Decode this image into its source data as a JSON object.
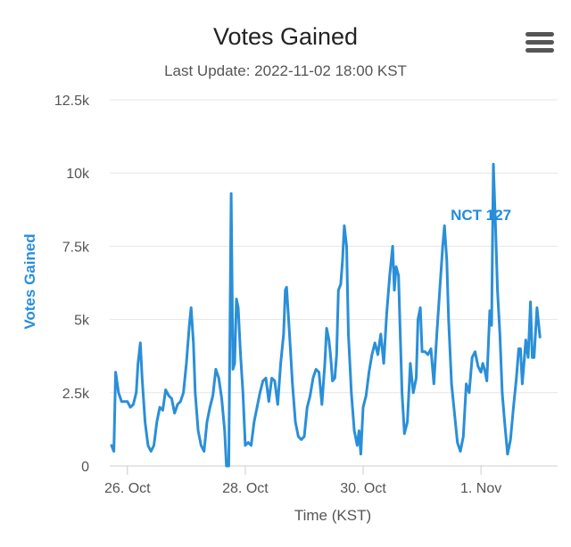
{
  "chart_data": {
    "type": "line",
    "title": "Votes Gained",
    "subtitle": "Last Update: 2022-11-02 18:00 KST",
    "xlabel": "Time (KST)",
    "ylabel": "Votes Gained",
    "ylim": [
      0,
      12500
    ],
    "yticks": [
      {
        "value": 0,
        "label": "0"
      },
      {
        "value": 2500,
        "label": "2.5k"
      },
      {
        "value": 5000,
        "label": "5k"
      },
      {
        "value": 7500,
        "label": "7.5k"
      },
      {
        "value": 10000,
        "label": "10k"
      },
      {
        "value": 12500,
        "label": "12.5k"
      }
    ],
    "xlim": [
      25.7,
      33.3
    ],
    "xticks": [
      {
        "value": 26,
        "label": "26. Oct"
      },
      {
        "value": 28,
        "label": "28. Oct"
      },
      {
        "value": 30,
        "label": "30. Oct"
      },
      {
        "value": 32,
        "label": "1. Nov"
      }
    ],
    "grid": true,
    "color": "#2a8fd8",
    "series": [
      {
        "name": "NCT 127",
        "points": [
          [
            25.73,
            700
          ],
          [
            25.77,
            500
          ],
          [
            25.8,
            3200
          ],
          [
            25.85,
            2500
          ],
          [
            25.9,
            2200
          ],
          [
            25.95,
            2200
          ],
          [
            26.0,
            2200
          ],
          [
            26.05,
            2000
          ],
          [
            26.1,
            2100
          ],
          [
            26.15,
            2500
          ],
          [
            26.18,
            3500
          ],
          [
            26.22,
            4200
          ],
          [
            26.25,
            3000
          ],
          [
            26.3,
            1500
          ],
          [
            26.35,
            700
          ],
          [
            26.4,
            500
          ],
          [
            26.45,
            700
          ],
          [
            26.5,
            1500
          ],
          [
            26.55,
            2000
          ],
          [
            26.6,
            1900
          ],
          [
            26.65,
            2600
          ],
          [
            26.7,
            2400
          ],
          [
            26.75,
            2300
          ],
          [
            26.8,
            1800
          ],
          [
            26.85,
            2100
          ],
          [
            26.9,
            2200
          ],
          [
            26.95,
            2500
          ],
          [
            27.0,
            3500
          ],
          [
            27.05,
            4800
          ],
          [
            27.08,
            5400
          ],
          [
            27.12,
            4200
          ],
          [
            27.15,
            2500
          ],
          [
            27.2,
            1200
          ],
          [
            27.25,
            700
          ],
          [
            27.3,
            500
          ],
          [
            27.35,
            1500
          ],
          [
            27.4,
            2000
          ],
          [
            27.45,
            2400
          ],
          [
            27.5,
            3300
          ],
          [
            27.55,
            3000
          ],
          [
            27.6,
            2300
          ],
          [
            27.65,
            1200
          ],
          [
            27.68,
            0
          ],
          [
            27.72,
            0
          ],
          [
            27.76,
            9300
          ],
          [
            27.79,
            3300
          ],
          [
            27.82,
            3500
          ],
          [
            27.85,
            5700
          ],
          [
            27.88,
            5400
          ],
          [
            27.92,
            3800
          ],
          [
            27.96,
            2500
          ],
          [
            28.0,
            700
          ],
          [
            28.05,
            800
          ],
          [
            28.1,
            700
          ],
          [
            28.15,
            1500
          ],
          [
            28.2,
            2000
          ],
          [
            28.25,
            2500
          ],
          [
            28.3,
            2900
          ],
          [
            28.35,
            3000
          ],
          [
            28.4,
            2200
          ],
          [
            28.45,
            3000
          ],
          [
            28.5,
            2900
          ],
          [
            28.55,
            2100
          ],
          [
            28.6,
            3500
          ],
          [
            28.65,
            4500
          ],
          [
            28.68,
            6000
          ],
          [
            28.7,
            6100
          ],
          [
            28.75,
            4500
          ],
          [
            28.8,
            2800
          ],
          [
            28.85,
            1500
          ],
          [
            28.9,
            1000
          ],
          [
            28.95,
            900
          ],
          [
            29.0,
            1000
          ],
          [
            29.05,
            2000
          ],
          [
            29.1,
            2400
          ],
          [
            29.15,
            3000
          ],
          [
            29.2,
            3300
          ],
          [
            29.25,
            3200
          ],
          [
            29.3,
            2100
          ],
          [
            29.35,
            3500
          ],
          [
            29.38,
            4700
          ],
          [
            29.42,
            4300
          ],
          [
            29.45,
            3700
          ],
          [
            29.48,
            2900
          ],
          [
            29.52,
            3000
          ],
          [
            29.55,
            3800
          ],
          [
            29.58,
            6000
          ],
          [
            29.62,
            6200
          ],
          [
            29.65,
            7000
          ],
          [
            29.68,
            8200
          ],
          [
            29.72,
            7500
          ],
          [
            29.75,
            4500
          ],
          [
            29.8,
            2500
          ],
          [
            29.85,
            1200
          ],
          [
            29.9,
            700
          ],
          [
            29.93,
            1200
          ],
          [
            29.96,
            400
          ],
          [
            30.0,
            2000
          ],
          [
            30.05,
            2400
          ],
          [
            30.1,
            3200
          ],
          [
            30.15,
            3800
          ],
          [
            30.2,
            4200
          ],
          [
            30.25,
            3800
          ],
          [
            30.3,
            4500
          ],
          [
            30.35,
            3500
          ],
          [
            30.4,
            5200
          ],
          [
            30.45,
            6500
          ],
          [
            30.5,
            7500
          ],
          [
            30.53,
            6000
          ],
          [
            30.56,
            6800
          ],
          [
            30.6,
            6500
          ],
          [
            30.63,
            4500
          ],
          [
            30.66,
            2500
          ],
          [
            30.7,
            1100
          ],
          [
            30.75,
            1500
          ],
          [
            30.8,
            3500
          ],
          [
            30.85,
            2500
          ],
          [
            30.9,
            3000
          ],
          [
            30.93,
            5000
          ],
          [
            30.97,
            5400
          ],
          [
            31.0,
            3900
          ],
          [
            31.05,
            3900
          ],
          [
            31.1,
            3800
          ],
          [
            31.15,
            4000
          ],
          [
            31.2,
            2800
          ],
          [
            31.25,
            4500
          ],
          [
            31.3,
            6000
          ],
          [
            31.35,
            7500
          ],
          [
            31.38,
            8200
          ],
          [
            31.42,
            7000
          ],
          [
            31.45,
            5000
          ],
          [
            31.5,
            2800
          ],
          [
            31.55,
            1800
          ],
          [
            31.6,
            800
          ],
          [
            31.65,
            500
          ],
          [
            31.7,
            1000
          ],
          [
            31.75,
            2800
          ],
          [
            31.8,
            2500
          ],
          [
            31.85,
            3700
          ],
          [
            31.9,
            3900
          ],
          [
            31.95,
            3400
          ],
          [
            32.0,
            3200
          ],
          [
            32.03,
            3500
          ],
          [
            32.06,
            3300
          ],
          [
            32.1,
            2900
          ],
          [
            32.15,
            5300
          ],
          [
            32.18,
            4800
          ],
          [
            32.21,
            10300
          ],
          [
            32.25,
            8000
          ],
          [
            32.28,
            6000
          ],
          [
            32.32,
            4500
          ],
          [
            32.36,
            2500
          ],
          [
            32.4,
            1500
          ],
          [
            32.45,
            400
          ],
          [
            32.5,
            900
          ],
          [
            32.55,
            2000
          ],
          [
            32.6,
            3000
          ],
          [
            32.64,
            4000
          ],
          [
            32.67,
            4000
          ],
          [
            32.7,
            2800
          ],
          [
            32.73,
            3500
          ],
          [
            32.76,
            4300
          ],
          [
            32.8,
            3700
          ],
          [
            32.84,
            5600
          ],
          [
            32.87,
            3700
          ],
          [
            32.9,
            3700
          ],
          [
            32.95,
            5400
          ],
          [
            33.0,
            4400
          ]
        ]
      }
    ],
    "annotations": [
      {
        "text": "NCT 127",
        "x": 32.0,
        "y": 8400
      }
    ]
  }
}
